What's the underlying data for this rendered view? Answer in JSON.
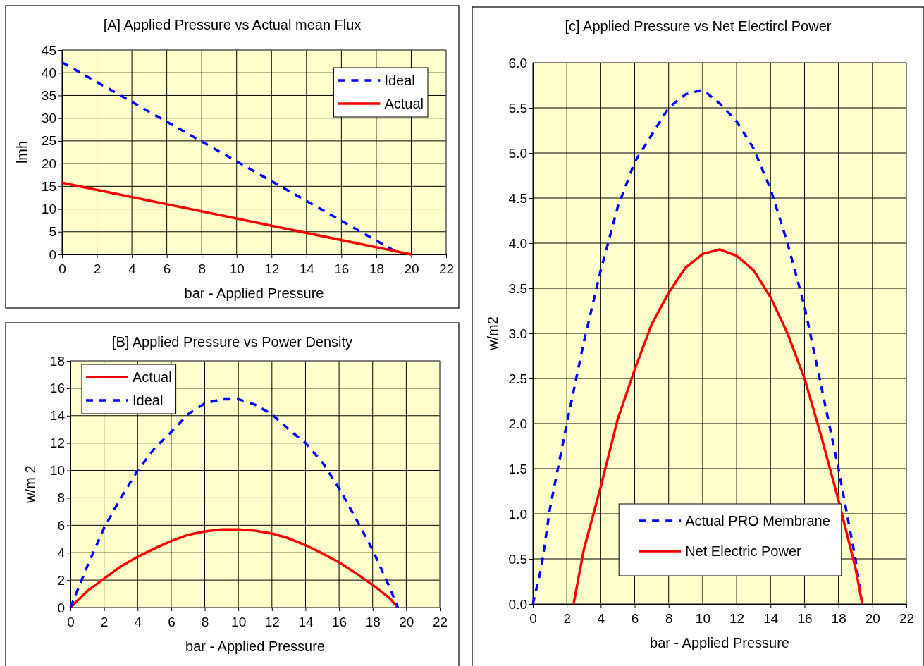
{
  "chart_data": [
    {
      "type": "line",
      "title": "[A] Applied Pressure vs Actual mean Flux",
      "xlabel": "bar - Applied Pressure",
      "ylabel": "lmh",
      "xlim": [
        0,
        22
      ],
      "xticks": [
        0,
        2,
        4,
        6,
        8,
        10,
        12,
        14,
        16,
        18,
        20,
        22
      ],
      "ylim": [
        0,
        45
      ],
      "yticks": [
        0,
        5,
        10,
        15,
        20,
        25,
        30,
        35,
        40,
        45
      ],
      "grid": true,
      "legend": "top right",
      "series": [
        {
          "name": "Ideal",
          "color": "#0000ff",
          "line_style": "dashed",
          "x": [
            0,
            19.4
          ],
          "values": [
            42.3,
            0
          ]
        },
        {
          "name": "Actual",
          "color": "#ff0000",
          "line_style": "solid",
          "x": [
            0,
            20
          ],
          "values": [
            15.8,
            0
          ]
        }
      ]
    },
    {
      "type": "line",
      "title": "[B] Applied Pressure vs Power Density",
      "xlabel": "bar - Applied Pressure",
      "ylabel": "w/m 2",
      "xlim": [
        0,
        22
      ],
      "xticks": [
        0,
        2,
        4,
        6,
        8,
        10,
        12,
        14,
        16,
        18,
        20,
        22
      ],
      "ylim": [
        0,
        18
      ],
      "yticks": [
        0,
        2,
        4,
        6,
        8,
        10,
        12,
        14,
        16,
        18
      ],
      "grid": true,
      "legend": "top left",
      "series": [
        {
          "name": "Actual",
          "color": "#ff0000",
          "line_style": "solid",
          "x": [
            0,
            1,
            2,
            3,
            4,
            5,
            6,
            7,
            8,
            9,
            10,
            11,
            12,
            13,
            14,
            15,
            16,
            17,
            18,
            19,
            19.5
          ],
          "values": [
            0,
            1.2,
            2.1,
            3,
            3.7,
            4.3,
            4.85,
            5.3,
            5.55,
            5.7,
            5.7,
            5.6,
            5.4,
            5.05,
            4.55,
            3.95,
            3.3,
            2.5,
            1.65,
            0.7,
            0
          ]
        },
        {
          "name": "Ideal",
          "color": "#0000ff",
          "line_style": "dashed",
          "x": [
            0,
            1,
            2,
            3,
            4,
            5,
            6,
            7,
            8,
            9,
            10,
            11,
            12,
            13,
            14,
            15,
            16,
            17,
            18,
            19,
            19.5
          ],
          "values": [
            0,
            3,
            5.8,
            8,
            10,
            11.6,
            12.8,
            14.1,
            14.9,
            15.2,
            15.2,
            14.8,
            14.1,
            13,
            12,
            10.6,
            8.7,
            6.5,
            4.2,
            1.5,
            0
          ]
        }
      ]
    },
    {
      "type": "line",
      "title": "[c] Applied Pressure vs Net Electircl Power",
      "xlabel": "bar - Applied Pressure",
      "ylabel": "w/m2",
      "xlim": [
        0,
        22
      ],
      "xticks": [
        0,
        2,
        4,
        6,
        8,
        10,
        12,
        14,
        16,
        18,
        20,
        22
      ],
      "ylim": [
        0,
        6
      ],
      "yticks": [
        {
          "value": 0,
          "label": "0.0"
        },
        0.5,
        {
          "value": 1,
          "label": "1.0"
        },
        1.5,
        {
          "value": 2,
          "label": "2.0"
        },
        2.5,
        {
          "value": 3,
          "label": "3.0"
        },
        3.5,
        {
          "value": 4,
          "label": "4.0"
        },
        4.5,
        {
          "value": 5,
          "label": "5.0"
        },
        5.5,
        {
          "value": 6,
          "label": "6.0"
        }
      ],
      "grid": true,
      "legend": "bottom",
      "series": [
        {
          "name": "Actual PRO Membrane",
          "color": "#0000ff",
          "line_style": "dashed",
          "x": [
            0,
            0.5,
            1,
            2,
            3,
            4,
            5,
            6,
            7,
            8,
            9,
            10,
            11,
            12,
            13,
            14,
            15,
            16,
            17,
            18,
            19,
            19.4
          ],
          "values": [
            0,
            0.4,
            1.05,
            2,
            2.9,
            3.7,
            4.4,
            4.9,
            5.2,
            5.5,
            5.65,
            5.7,
            5.55,
            5.35,
            5.05,
            4.6,
            4,
            3.3,
            2.4,
            1.5,
            0.5,
            0
          ]
        },
        {
          "name": "Net Electric Power",
          "color": "#ff0000",
          "line_style": "solid",
          "x": [
            2.4,
            3,
            4,
            5,
            6,
            7,
            8,
            9,
            10,
            11,
            12,
            13,
            14,
            15,
            16,
            17,
            18,
            19,
            19.4
          ],
          "values": [
            0,
            0.6,
            1.3,
            2.05,
            2.6,
            3.1,
            3.45,
            3.73,
            3.88,
            3.93,
            3.86,
            3.7,
            3.4,
            3,
            2.5,
            1.85,
            1.15,
            0.4,
            0
          ]
        }
      ]
    }
  ]
}
